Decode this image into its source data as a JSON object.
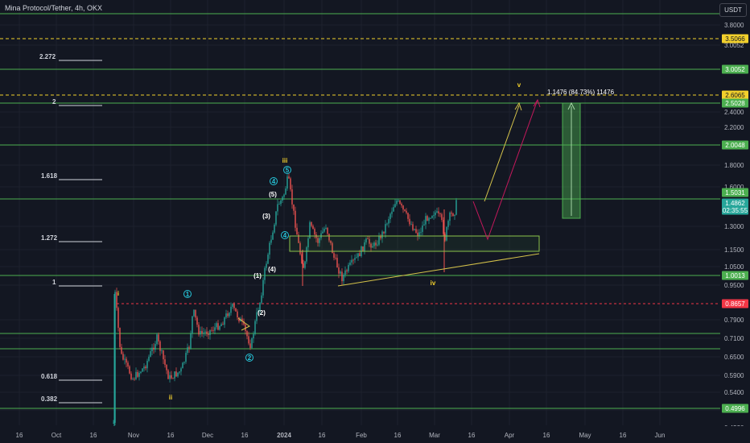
{
  "header": {
    "symbol_title": "Mina Protocol/Tether, 4h, OKX",
    "currency_button": "USDT"
  },
  "price_scale": {
    "ticks": [
      "3.8000",
      "3.0052",
      "2.4000",
      "2.2000",
      "1.8000",
      "1.6000",
      "1.3000",
      "1.1500",
      "1.0500",
      "0.9500",
      "0.7900",
      "0.7100",
      "0.6500",
      "0.5900",
      "0.5400",
      "0.4950",
      "0.4530"
    ],
    "badges": [
      {
        "value": "3.5066",
        "bg": "#f2d02c",
        "fg": "#131722"
      },
      {
        "value": "3.0052",
        "bg": "#4caf50",
        "fg": "#ffffff"
      },
      {
        "value": "2.6065",
        "bg": "#f2d02c",
        "fg": "#131722"
      },
      {
        "value": "2.5028",
        "bg": "#4caf50",
        "fg": "#ffffff"
      },
      {
        "value": "2.0048",
        "bg": "#4caf50",
        "fg": "#ffffff"
      },
      {
        "value": "1.5031",
        "bg": "#4caf50",
        "fg": "#ffffff"
      },
      {
        "value": "1.4862",
        "bg": "#26a69a",
        "fg": "#ffffff"
      },
      {
        "value": "02:35:55",
        "bg": "#26a69a",
        "fg": "#ffffff"
      },
      {
        "value": "1.0013",
        "bg": "#4caf50",
        "fg": "#ffffff"
      },
      {
        "value": "0.8657",
        "bg": "#f23645",
        "fg": "#ffffff"
      },
      {
        "value": "0.4996",
        "bg": "#4caf50",
        "fg": "#ffffff"
      }
    ]
  },
  "time_axis": {
    "labels": [
      "16",
      "Oct",
      "16",
      "Nov",
      "16",
      "Dec",
      "16",
      "2024",
      "16",
      "Feb",
      "16",
      "Mar",
      "16",
      "Apr",
      "16",
      "May",
      "16",
      "Jun"
    ]
  },
  "fib_levels": [
    "2.272",
    "2",
    "1.618",
    "1.272",
    "1",
    "0.618",
    "0.382"
  ],
  "wave_labels": {
    "major": [
      "i",
      "ii",
      "iii",
      "iv",
      "v"
    ],
    "minor_circled": [
      "1",
      "2",
      "4",
      "5",
      "4"
    ],
    "sub": [
      "(1)",
      "(2)",
      "(3)",
      "(4)",
      "(5)"
    ]
  },
  "measure_label": "1.1476 (84.73%) 11476",
  "colors": {
    "background": "#131722",
    "grid": "#1e222d",
    "level_line": "#4caf50",
    "yellow": "#f2d02c",
    "red": "#f23645",
    "up_candle": "#26a69a",
    "down_candle": "#ef5350",
    "projection_yellow": "#d4c24a",
    "projection_red": "#c2185b"
  }
}
